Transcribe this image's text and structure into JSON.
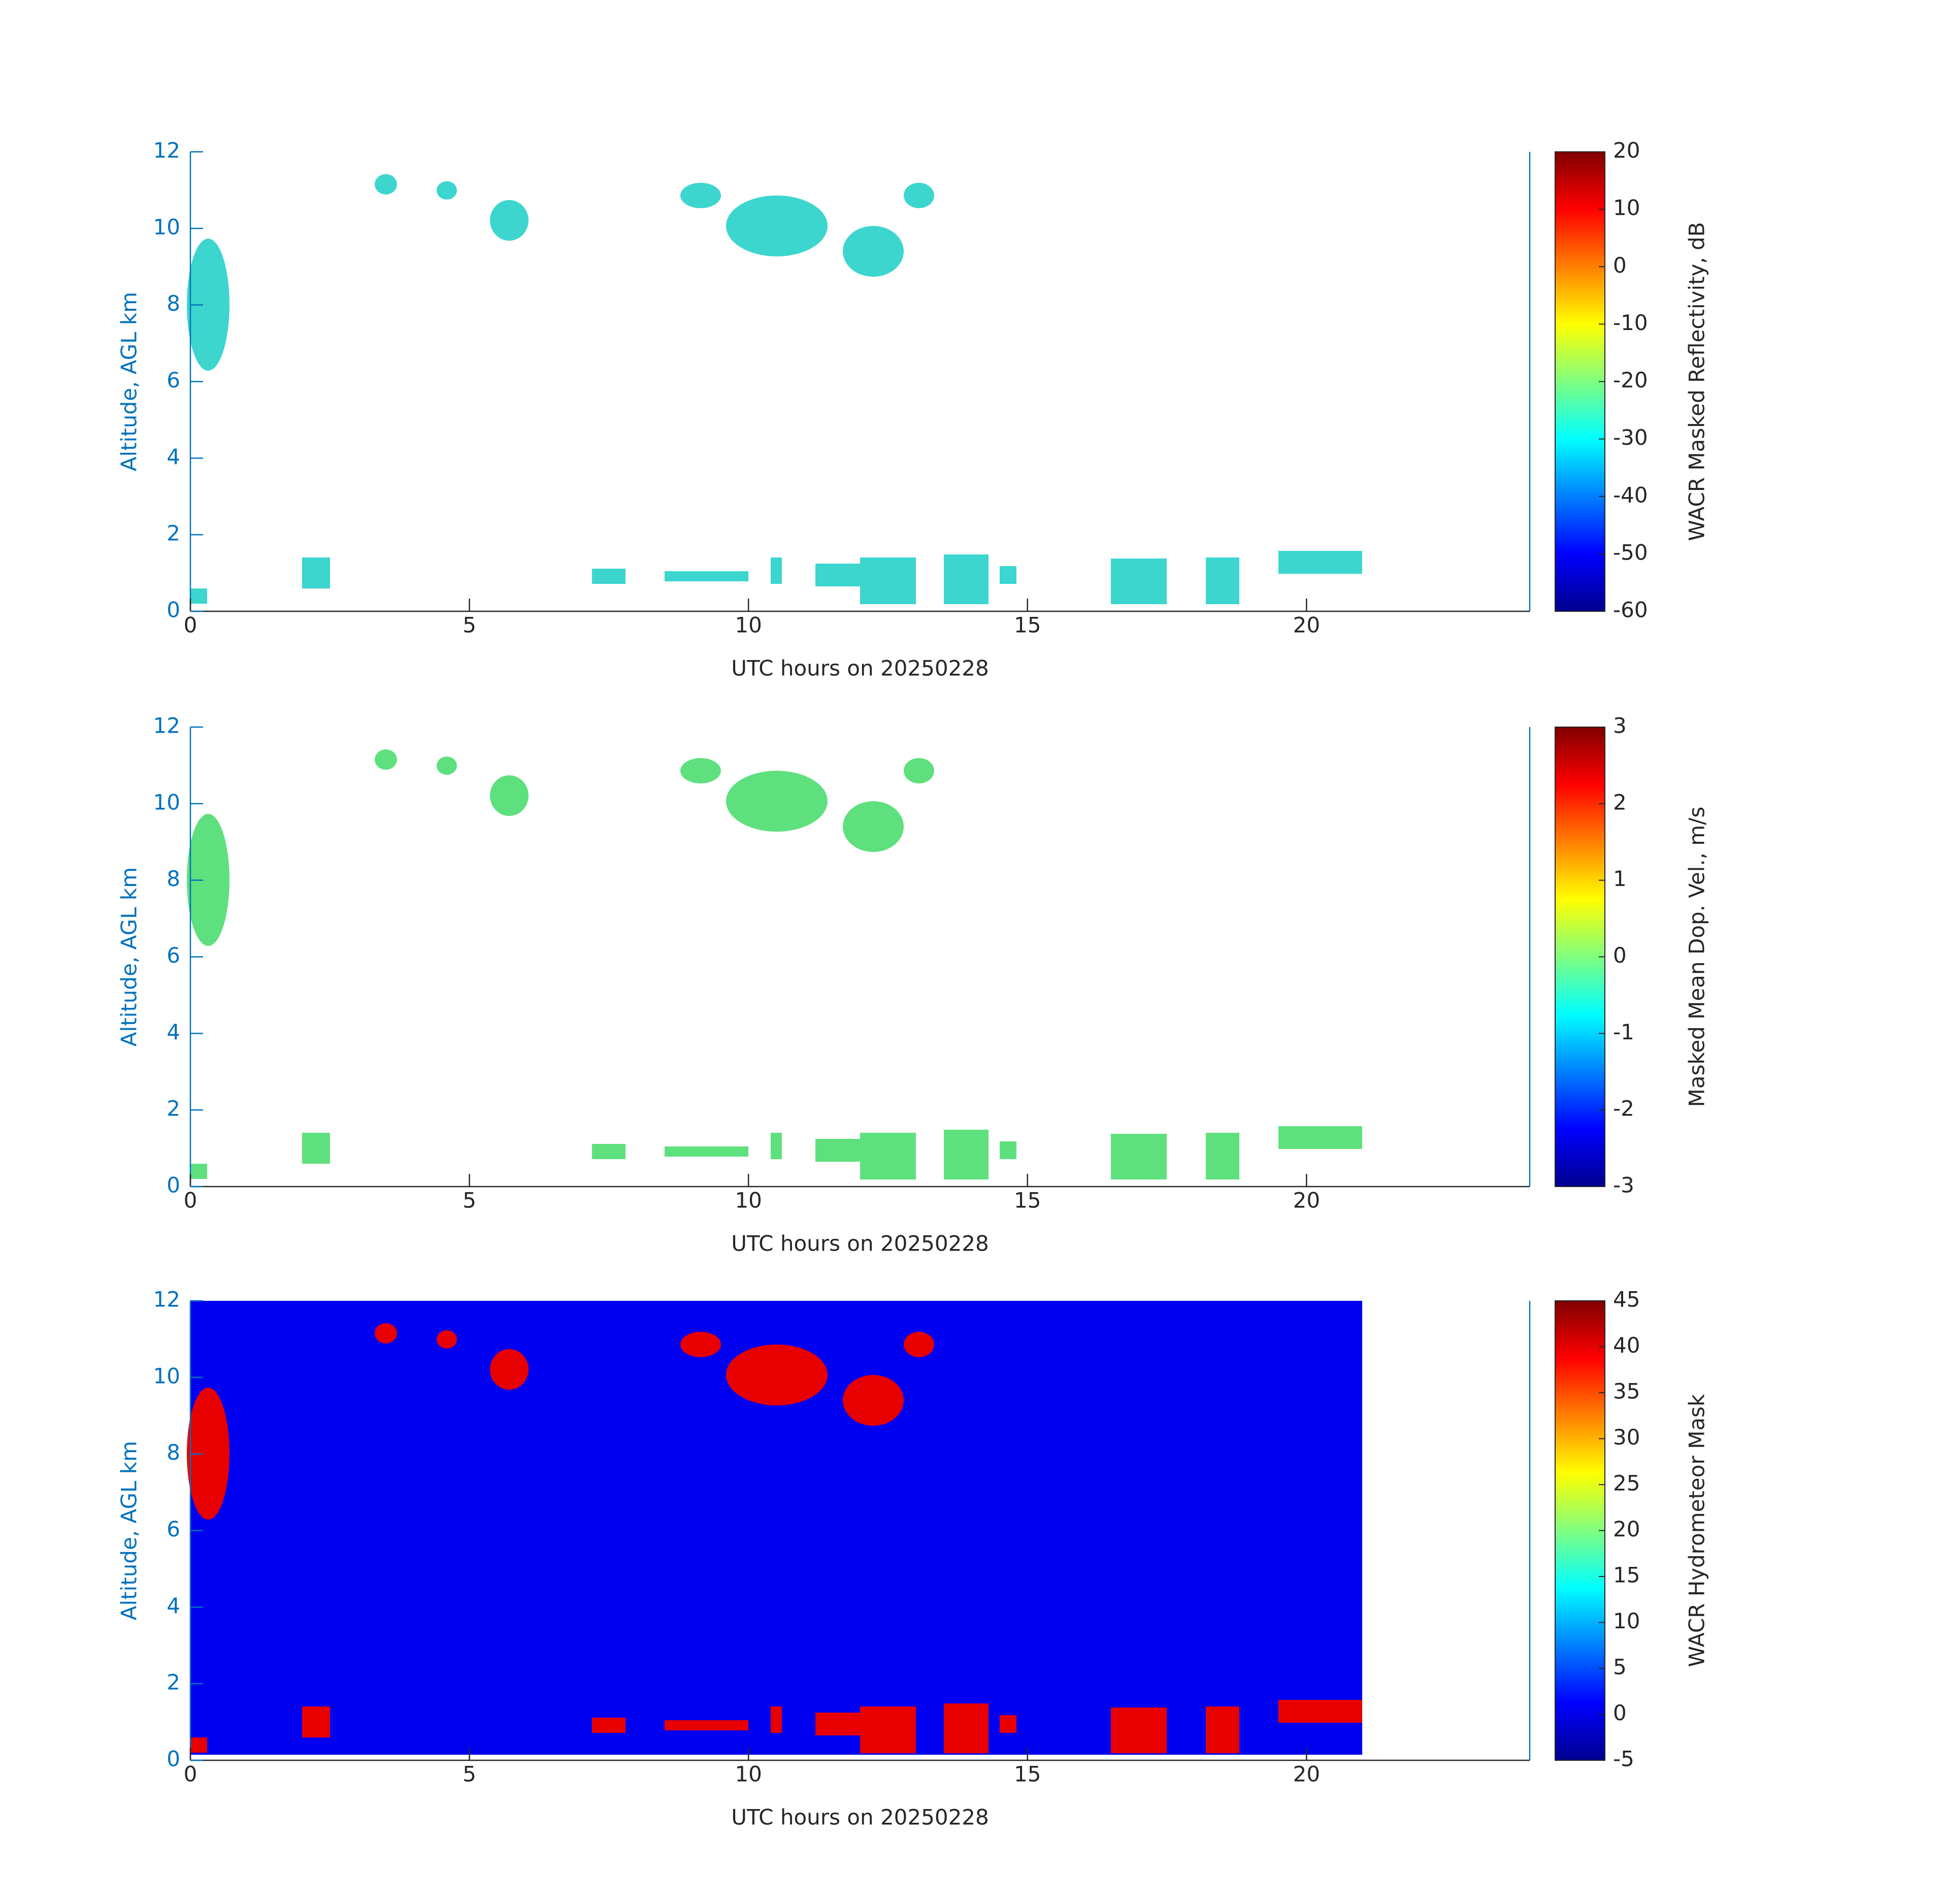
{
  "chart_data": [
    {
      "type": "heatmap",
      "x_label": "UTC hours on 20250228",
      "y_label": "Altitude, AGL km",
      "xlim": [
        0,
        24
      ],
      "xticks": [
        0,
        5,
        10,
        15,
        20
      ],
      "ylim": [
        0,
        12
      ],
      "yticks": [
        0,
        2,
        4,
        6,
        8,
        10,
        12
      ],
      "colormap": "jet",
      "colorbar": {
        "label": "WACR Masked Reflectivity, dB",
        "lim": [
          -60,
          20
        ],
        "ticks": [
          -60,
          -50,
          -40,
          -30,
          -20,
          -10,
          0,
          10,
          20
        ]
      }
    },
    {
      "type": "heatmap",
      "x_label": "UTC hours on 20250228",
      "y_label": "Altitude, AGL km",
      "xlim": [
        0,
        24
      ],
      "xticks": [
        0,
        5,
        10,
        15,
        20
      ],
      "ylim": [
        0,
        12
      ],
      "yticks": [
        0,
        2,
        4,
        6,
        8,
        10,
        12
      ],
      "colormap": "jet",
      "colorbar": {
        "label": "Masked Mean Dop. Vel., m/s",
        "lim": [
          -3,
          3
        ],
        "ticks": [
          -3,
          -2,
          -1,
          0,
          1,
          2,
          3
        ]
      }
    },
    {
      "type": "heatmap",
      "x_label": "UTC hours on 20250228",
      "y_label": "Altitude, AGL km",
      "xlim": [
        0,
        24
      ],
      "xticks": [
        0,
        5,
        10,
        15,
        20
      ],
      "ylim": [
        0,
        12
      ],
      "yticks": [
        0,
        2,
        4,
        6,
        8,
        10,
        12
      ],
      "colormap": "jet",
      "colorbar": {
        "label": "WACR Hydrometeor Mask",
        "lim": [
          -5,
          45
        ],
        "ticks": [
          -5,
          0,
          5,
          10,
          15,
          20,
          25,
          30,
          35,
          40,
          45
        ]
      }
    }
  ]
}
